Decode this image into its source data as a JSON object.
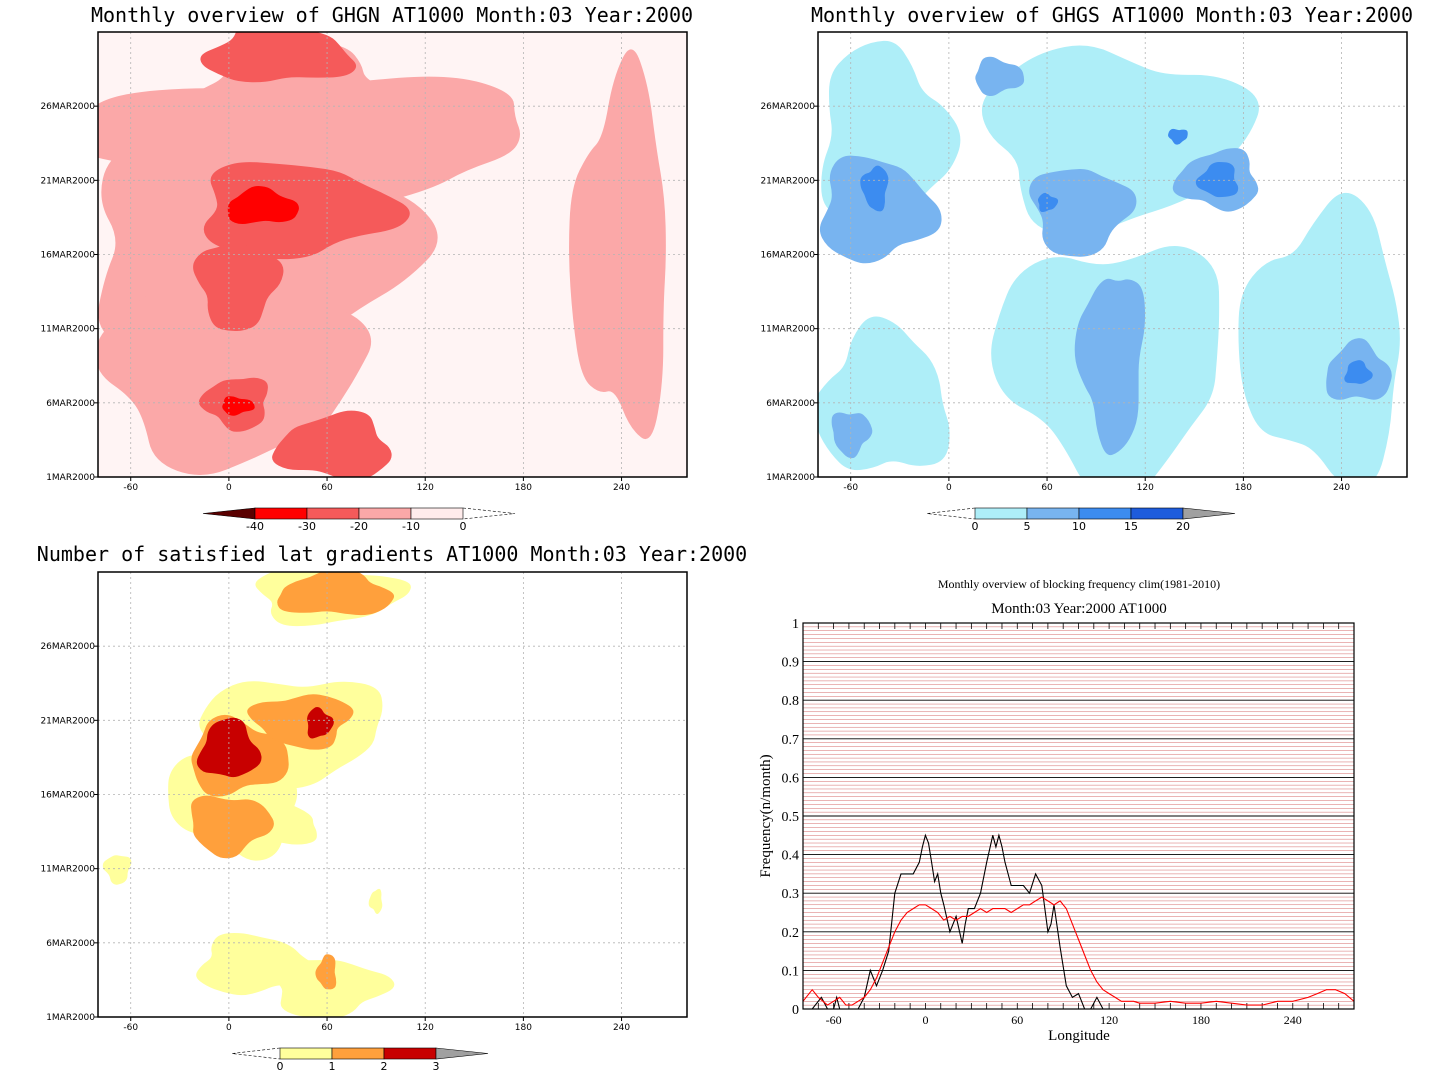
{
  "chart_data": [
    {
      "type": "heatmap",
      "title": "Monthly overview of GHGN AT1000 Month:03 Year:2000",
      "x_ticks": [
        "-60",
        "0",
        "60",
        "120",
        "180",
        "240"
      ],
      "x_tick_values": [
        -60,
        0,
        60,
        120,
        180,
        240
      ],
      "y_ticks": [
        "1MAR2000",
        "6MAR2000",
        "11MAR2000",
        "16MAR2000",
        "21MAR2000",
        "26MAR2000"
      ],
      "y_tick_values": [
        1,
        6,
        11,
        16,
        21,
        26
      ],
      "xlim": [
        -80,
        280
      ],
      "ylim": [
        1,
        31
      ],
      "colorbar": {
        "levels": [
          "-40",
          "-30",
          "-20",
          "-10",
          "0"
        ],
        "colors": [
          "#5a0000",
          "#ff0000",
          "#f55a5a",
          "#fba8a8",
          "#ffecec"
        ],
        "extend": "both"
      },
      "blobs": [
        {
          "level": 1,
          "lon": 40,
          "day": 27,
          "rlon": 60,
          "rday": 3.2
        },
        {
          "level": 1,
          "lon": 10,
          "day": 17,
          "rlon": 100,
          "rday": 8
        },
        {
          "level": 1,
          "lon": 0,
          "day": 8,
          "rlon": 80,
          "rday": 6
        },
        {
          "level": 1,
          "lon": 50,
          "day": 24,
          "rlon": 140,
          "rday": 4
        },
        {
          "level": 1,
          "lon": 240,
          "day": 16,
          "rlon": 30,
          "rday": 12
        },
        {
          "level": 2,
          "lon": 30,
          "day": 29.5,
          "rlon": 45,
          "rday": 2
        },
        {
          "level": 2,
          "lon": 40,
          "day": 19,
          "rlon": 60,
          "rday": 3.2
        },
        {
          "level": 2,
          "lon": 5,
          "day": 14,
          "rlon": 25,
          "rday": 3
        },
        {
          "level": 2,
          "lon": 5,
          "day": 6,
          "rlon": 20,
          "rday": 1.8
        },
        {
          "level": 2,
          "lon": 65,
          "day": 3,
          "rlon": 35,
          "rday": 2.2
        },
        {
          "level": 3,
          "lon": 20,
          "day": 19.2,
          "rlon": 22,
          "rday": 1.2
        },
        {
          "level": 3,
          "lon": 5,
          "day": 5.8,
          "rlon": 10,
          "rday": 0.6
        }
      ]
    },
    {
      "type": "heatmap",
      "title": "Monthly overview of GHGS AT1000 Month:03 Year:2000",
      "x_ticks": [
        "-60",
        "0",
        "60",
        "120",
        "180",
        "240"
      ],
      "x_tick_values": [
        -60,
        0,
        60,
        120,
        180,
        240
      ],
      "y_ticks": [
        "1MAR2000",
        "6MAR2000",
        "11MAR2000",
        "16MAR2000",
        "21MAR2000",
        "26MAR2000"
      ],
      "y_tick_values": [
        1,
        6,
        11,
        16,
        21,
        26
      ],
      "xlim": [
        -80,
        280
      ],
      "ylim": [
        1,
        31
      ],
      "colorbar": {
        "levels": [
          "0",
          "5",
          "10",
          "15",
          "20"
        ],
        "colors": [
          "#aeeef8",
          "#78b4f0",
          "#3c8cf0",
          "#1e5cdc",
          "#a0a0a0"
        ],
        "extend": "both"
      },
      "blobs": [
        {
          "level": 1,
          "lon": -40,
          "day": 24,
          "rlon": 40,
          "rday": 6
        },
        {
          "level": 1,
          "lon": 100,
          "day": 24,
          "rlon": 80,
          "rday": 6
        },
        {
          "level": 1,
          "lon": 100,
          "day": 9,
          "rlon": 70,
          "rday": 8
        },
        {
          "level": 1,
          "lon": 230,
          "day": 10,
          "rlon": 50,
          "rday": 9
        },
        {
          "level": 1,
          "lon": -40,
          "day": 6,
          "rlon": 40,
          "rday": 5
        },
        {
          "level": 2,
          "lon": -45,
          "day": 19,
          "rlon": 35,
          "rday": 3.5
        },
        {
          "level": 2,
          "lon": 80,
          "day": 19,
          "rlon": 30,
          "rday": 3
        },
        {
          "level": 2,
          "lon": 100,
          "day": 9,
          "rlon": 20,
          "rday": 6
        },
        {
          "level": 2,
          "lon": 165,
          "day": 21,
          "rlon": 25,
          "rday": 2
        },
        {
          "level": 2,
          "lon": 250,
          "day": 8,
          "rlon": 20,
          "rday": 2
        },
        {
          "level": 2,
          "lon": 30,
          "day": 28,
          "rlon": 15,
          "rday": 1.2
        },
        {
          "level": 2,
          "lon": -60,
          "day": 4,
          "rlon": 12,
          "rday": 1.5
        },
        {
          "level": 3,
          "lon": -45,
          "day": 20.5,
          "rlon": 8,
          "rday": 1.5
        },
        {
          "level": 3,
          "lon": 165,
          "day": 21,
          "rlon": 12,
          "rday": 1.2
        },
        {
          "level": 3,
          "lon": 250,
          "day": 8,
          "rlon": 8,
          "rday": 0.8
        },
        {
          "level": 3,
          "lon": 60,
          "day": 19.5,
          "rlon": 6,
          "rday": 0.6
        },
        {
          "level": 3,
          "lon": 140,
          "day": 24,
          "rlon": 6,
          "rday": 0.5
        }
      ]
    },
    {
      "type": "heatmap",
      "title": "Number of satisfied lat gradients AT1000 Month:03 Year:2000",
      "x_ticks": [
        "-60",
        "0",
        "60",
        "120",
        "180",
        "240"
      ],
      "x_tick_values": [
        -60,
        0,
        60,
        120,
        180,
        240
      ],
      "y_ticks": [
        "1MAR2000",
        "6MAR2000",
        "11MAR2000",
        "16MAR2000",
        "21MAR2000",
        "26MAR2000"
      ],
      "y_tick_values": [
        1,
        6,
        11,
        16,
        21,
        26
      ],
      "xlim": [
        -80,
        280
      ],
      "ylim": [
        1,
        31
      ],
      "colorbar": {
        "levels": [
          "0",
          "1",
          "2",
          "3"
        ],
        "colors": [
          "#ffff9c",
          "#ffa03c",
          "#c80000",
          "#a0a0a0"
        ],
        "extend": "both"
      },
      "blobs": [
        {
          "level": 1,
          "lon": 60,
          "day": 29.5,
          "rlon": 45,
          "rday": 2
        },
        {
          "level": 1,
          "lon": 40,
          "day": 20.5,
          "rlon": 55,
          "rday": 3.5
        },
        {
          "level": 1,
          "lon": 5,
          "day": 16,
          "rlon": 40,
          "rday": 4
        },
        {
          "level": 1,
          "lon": 25,
          "day": 14,
          "rlon": 30,
          "rday": 1.5
        },
        {
          "level": 1,
          "lon": 15,
          "day": 4.5,
          "rlon": 35,
          "rday": 2
        },
        {
          "level": 1,
          "lon": 60,
          "day": 3,
          "rlon": 35,
          "rday": 2
        },
        {
          "level": 1,
          "lon": -68,
          "day": 11,
          "rlon": 8,
          "rday": 1
        },
        {
          "level": 1,
          "lon": 90,
          "day": 8.8,
          "rlon": 4,
          "rday": 0.8
        },
        {
          "level": 2,
          "lon": 65,
          "day": 29.5,
          "rlon": 35,
          "rday": 1.5
        },
        {
          "level": 2,
          "lon": 5,
          "day": 18.5,
          "rlon": 30,
          "rday": 2.5
        },
        {
          "level": 2,
          "lon": 0,
          "day": 14,
          "rlon": 25,
          "rday": 2
        },
        {
          "level": 2,
          "lon": 45,
          "day": 21,
          "rlon": 30,
          "rday": 1.8
        },
        {
          "level": 2,
          "lon": 60,
          "day": 4,
          "rlon": 6,
          "rday": 1.2
        },
        {
          "level": 3,
          "lon": 0,
          "day": 19,
          "rlon": 18,
          "rday": 2
        },
        {
          "level": 3,
          "lon": 55,
          "day": 20.8,
          "rlon": 8,
          "rday": 1
        }
      ]
    },
    {
      "type": "line",
      "title": "Monthly overview of blocking frequency clim(1981-2010)",
      "subtitle": "Month:03 Year:2000  AT1000",
      "xlabel": "Longitude",
      "ylabel": "Frequency(n/month)",
      "xlim": [
        -80,
        280
      ],
      "ylim": [
        0,
        1
      ],
      "x_ticks": [
        "-60",
        "0",
        "60",
        "120",
        "180",
        "240"
      ],
      "x_tick_values": [
        -60,
        0,
        60,
        120,
        180,
        240
      ],
      "y_ticks": [
        "0",
        "0.1",
        "0.2",
        "0.3",
        "0.4",
        "0.5",
        "0.6",
        "0.7",
        "0.8",
        "0.9",
        "1"
      ],
      "y_tick_values": [
        0,
        0.1,
        0.2,
        0.3,
        0.4,
        0.5,
        0.6,
        0.7,
        0.8,
        0.9,
        1
      ],
      "series": [
        {
          "color": "#000000",
          "x": [
            -80,
            -74,
            -68,
            -64,
            -60,
            -58,
            -56,
            -52,
            -48,
            -44,
            -40,
            -36,
            -32,
            -28,
            -24,
            -20,
            -16,
            -12,
            -8,
            -4,
            -2,
            0,
            2,
            4,
            6,
            8,
            10,
            12,
            16,
            20,
            24,
            26,
            28,
            32,
            36,
            40,
            44,
            46,
            48,
            50,
            52,
            56,
            60,
            64,
            68,
            72,
            76,
            80,
            82,
            84,
            88,
            92,
            96,
            100,
            104,
            108,
            112,
            116,
            280
          ],
          "y": [
            0,
            0,
            0.03,
            0,
            0,
            0.03,
            0,
            0,
            0,
            0,
            0.03,
            0.1,
            0.06,
            0.1,
            0.15,
            0.3,
            0.35,
            0.35,
            0.35,
            0.38,
            0.42,
            0.45,
            0.43,
            0.38,
            0.33,
            0.35,
            0.3,
            0.27,
            0.2,
            0.24,
            0.17,
            0.22,
            0.26,
            0.26,
            0.3,
            0.38,
            0.45,
            0.42,
            0.45,
            0.42,
            0.38,
            0.32,
            0.32,
            0.32,
            0.3,
            0.35,
            0.32,
            0.2,
            0.22,
            0.27,
            0.16,
            0.06,
            0.03,
            0.04,
            0,
            0,
            0.03,
            0,
            0
          ]
        },
        {
          "color": "#ff0000",
          "x": [
            -80,
            -74,
            -70,
            -64,
            -60,
            -56,
            -52,
            -48,
            -44,
            -40,
            -36,
            -32,
            -28,
            -24,
            -20,
            -16,
            -12,
            -8,
            -4,
            0,
            4,
            8,
            12,
            16,
            20,
            24,
            28,
            32,
            36,
            40,
            44,
            48,
            52,
            56,
            60,
            64,
            68,
            72,
            76,
            80,
            84,
            88,
            92,
            96,
            100,
            104,
            108,
            112,
            116,
            120,
            124,
            128,
            132,
            136,
            140,
            150,
            160,
            170,
            180,
            190,
            200,
            210,
            220,
            230,
            240,
            250,
            256,
            262,
            268,
            274,
            280
          ],
          "y": [
            0.02,
            0.05,
            0.03,
            0.01,
            0.02,
            0.03,
            0.01,
            0.01,
            0.02,
            0.03,
            0.05,
            0.08,
            0.12,
            0.16,
            0.2,
            0.23,
            0.25,
            0.26,
            0.27,
            0.27,
            0.26,
            0.25,
            0.23,
            0.24,
            0.23,
            0.24,
            0.24,
            0.25,
            0.26,
            0.25,
            0.26,
            0.26,
            0.26,
            0.25,
            0.26,
            0.27,
            0.27,
            0.28,
            0.29,
            0.28,
            0.27,
            0.28,
            0.26,
            0.22,
            0.18,
            0.14,
            0.1,
            0.07,
            0.05,
            0.04,
            0.03,
            0.02,
            0.02,
            0.02,
            0.015,
            0.015,
            0.02,
            0.015,
            0.015,
            0.02,
            0.015,
            0.01,
            0.01,
            0.02,
            0.02,
            0.03,
            0.04,
            0.05,
            0.05,
            0.04,
            0.02
          ]
        }
      ]
    }
  ]
}
